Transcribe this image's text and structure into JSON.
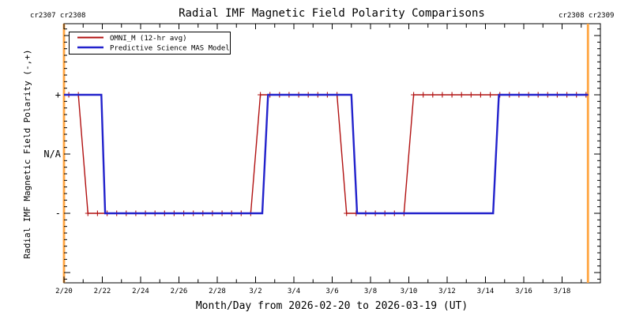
{
  "header": {
    "cr_left": "cr2307 cr2308",
    "cr_right": "cr2308 cr2309"
  },
  "legend": {
    "items": [
      {
        "label": "OMNI_M (12-hr avg)",
        "color": "#B11111"
      },
      {
        "label": "Predictive Science MAS Model",
        "color": "#2222CC"
      }
    ]
  },
  "chart_data": {
    "type": "line",
    "title": "Radial IMF Magnetic Field Polarity Comparisons",
    "xlabel": "Month/Day from 2026-02-20 to 2026-03-19 (UT)",
    "ylabel": "Radial IMF Magnetic Field Polarity (-,+)",
    "x_epoch": "2026-02-20 00:00 UT",
    "x_range_days": [
      0,
      28
    ],
    "x_minor_tick_interval_days": 1,
    "x_major_tick_interval_days": 2,
    "grid": false,
    "legend_position": "top-left",
    "x_ticks": [
      {
        "day": 0,
        "label": "2/20"
      },
      {
        "day": 2,
        "label": "2/22"
      },
      {
        "day": 4,
        "label": "2/24"
      },
      {
        "day": 6,
        "label": "2/26"
      },
      {
        "day": 8,
        "label": "2/28"
      },
      {
        "day": 10,
        "label": "3/2"
      },
      {
        "day": 12,
        "label": "3/4"
      },
      {
        "day": 14,
        "label": "3/6"
      },
      {
        "day": 16,
        "label": "3/8"
      },
      {
        "day": 18,
        "label": "3/10"
      },
      {
        "day": 20,
        "label": "3/12"
      },
      {
        "day": 22,
        "label": "3/14"
      },
      {
        "day": 24,
        "label": "3/16"
      },
      {
        "day": 26,
        "label": "3/18"
      }
    ],
    "y_ticks": [
      {
        "label": "+",
        "value": 1
      },
      {
        "label": "N/A",
        "value": 0
      },
      {
        "label": "-",
        "value": -1
      }
    ],
    "y_major_unlabeled_values": [
      2,
      -2
    ],
    "series": [
      {
        "name": "OMNI_M (12-hr avg)",
        "color": "#B11111",
        "line_width": 1.4,
        "marker": "plus",
        "marker_start_day": 0.25,
        "marker_interval_days": 0.5,
        "points_day_polarity": [
          [
            0,
            1
          ],
          [
            0.75,
            1
          ],
          [
            1.25,
            -1
          ],
          [
            9.75,
            -1
          ],
          [
            10.25,
            1
          ],
          [
            14.25,
            1
          ],
          [
            14.75,
            -1
          ],
          [
            17.75,
            -1
          ],
          [
            18.25,
            1
          ],
          [
            27.35,
            1
          ]
        ]
      },
      {
        "name": "Predictive Science MAS Model",
        "color": "#2222CC",
        "line_width": 2.4,
        "marker": "none",
        "points_day_polarity": [
          [
            0,
            1
          ],
          [
            1.95,
            1
          ],
          [
            2.15,
            -1
          ],
          [
            10.35,
            -1
          ],
          [
            10.65,
            1
          ],
          [
            15.0,
            1
          ],
          [
            15.3,
            -1
          ],
          [
            22.4,
            -1
          ],
          [
            22.7,
            1
          ],
          [
            27.35,
            1
          ]
        ]
      }
    ],
    "annotations": {
      "carrington_rotation_boundaries": [
        {
          "day": 0,
          "label_left": "cr2307",
          "label_right": "cr2308"
        },
        {
          "day": 27.35,
          "label_left": "cr2308",
          "label_right": "cr2309"
        }
      ],
      "boundary_color": "#FFA540"
    }
  }
}
